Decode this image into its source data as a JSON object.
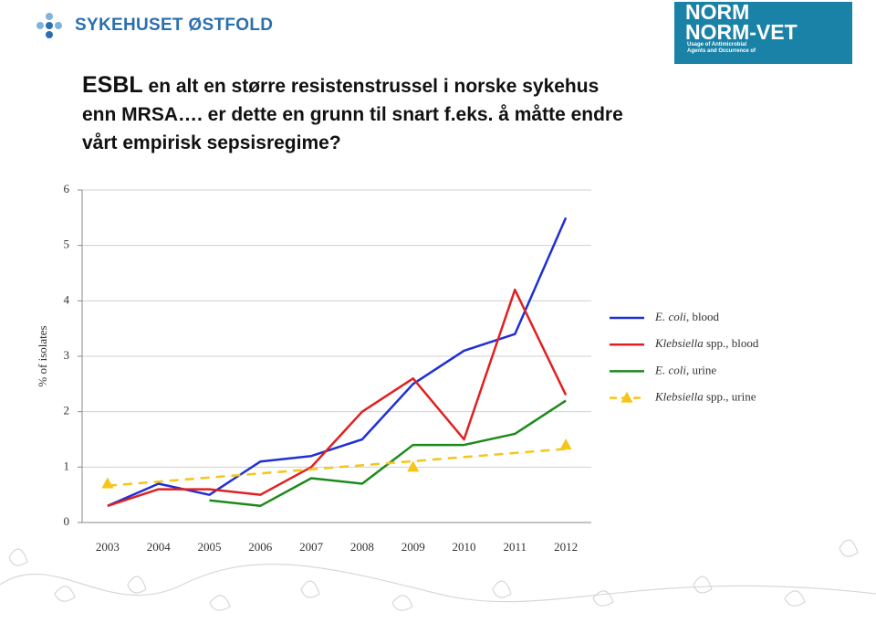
{
  "header": {
    "logo_text": "SYKEHUSET ØSTFOLD",
    "norm_logo": [
      "NORM",
      "NORM-VET",
      "Usage of Antimicrobial",
      "Agents and Occurrence of"
    ]
  },
  "heading": {
    "lead": "ESBL",
    "lines": [
      "en alt en større resistenstrussel i norske sykehus",
      "enn MRSA….  er dette en grunn til snart f.eks. å måtte endre",
      "vårt empirisk sepsisregime?"
    ]
  },
  "chart_data": {
    "type": "line",
    "y_label": "% of isolates",
    "categories": [
      "2003",
      "2004",
      "2005",
      "2006",
      "2007",
      "2008",
      "2009",
      "2010",
      "2011",
      "2012"
    ],
    "ylim": [
      0,
      6
    ],
    "yticks": [
      0,
      1,
      2,
      3,
      4,
      5,
      6
    ],
    "grid": true,
    "series": [
      {
        "name": "E. coli, blood",
        "color": "#1f2fd6",
        "values": [
          0.3,
          0.7,
          0.5,
          1.1,
          1.2,
          1.5,
          2.5,
          3.1,
          3.4,
          5.5
        ]
      },
      {
        "name": "Klebsiella spp., blood",
        "color": "#e02020",
        "values": [
          0.3,
          0.6,
          0.6,
          0.5,
          1.0,
          2.0,
          2.6,
          1.5,
          4.2,
          2.3
        ]
      },
      {
        "name": "E. coli, urine",
        "color": "#1d8a1d",
        "values": [
          null,
          null,
          0.4,
          0.3,
          0.8,
          0.7,
          1.4,
          1.4,
          1.6,
          2.2
        ]
      },
      {
        "name": "Klebsiella spp., urine",
        "color": "#f5c518",
        "marker": "triangle",
        "trendline": true,
        "values": [
          0.7,
          null,
          null,
          null,
          null,
          null,
          1.0,
          null,
          null,
          1.4
        ]
      }
    ]
  }
}
